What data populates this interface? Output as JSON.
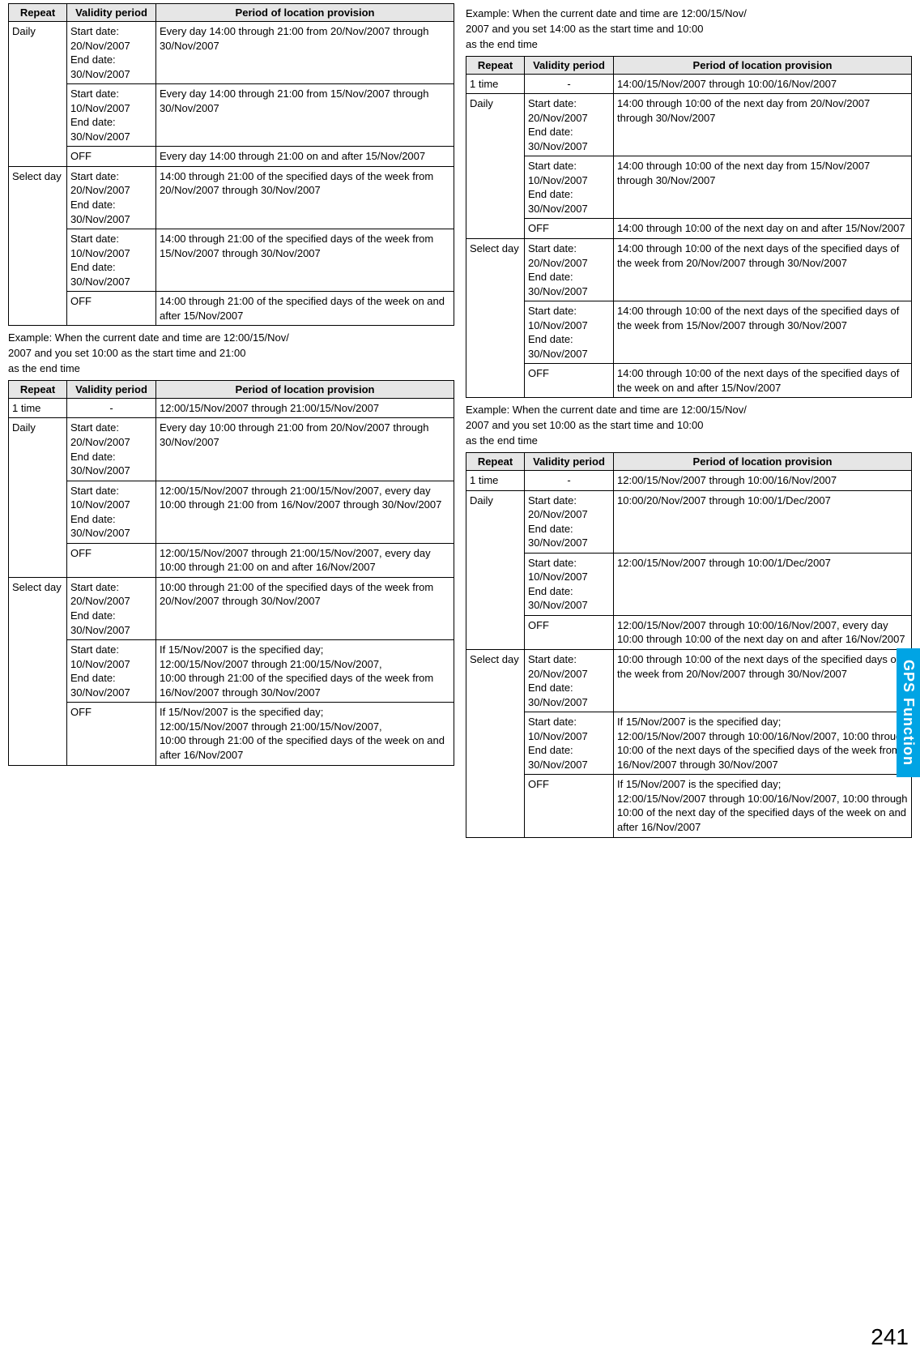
{
  "sideTab": "GPS Function",
  "pageNumber": "241",
  "headers": {
    "repeat": "Repeat",
    "validity": "Validity period",
    "period": "Period of location provision"
  },
  "examples": {
    "ex2": "Example: When the current date and time are 12:00/15/Nov/2007 and you set 10:00 as the start time and 21:00 as the end time",
    "ex3": "Example: When the current date and time are 12:00/15/Nov/2007 and you set 14:00 as the start time and 10:00 as the end time",
    "ex4": "Example: When the current date and time are 12:00/15/Nov/2007 and you set 10:00 as the start time and 10:00 as the end time"
  },
  "table1": [
    {
      "repeat": "Daily",
      "validity": "Start date: 20/Nov/2007\nEnd date: 30/Nov/2007",
      "period": "Every day 14:00 through 21:00 from 20/Nov/2007 through 30/Nov/2007",
      "rowspan": 3
    },
    {
      "validity": "Start date: 10/Nov/2007\nEnd date: 30/Nov/2007",
      "period": "Every day 14:00 through 21:00 from 15/Nov/2007 through 30/Nov/2007"
    },
    {
      "validity": "OFF",
      "period": "Every day 14:00 through 21:00 on and after 15/Nov/2007"
    },
    {
      "repeat": "Select day",
      "validity": "Start date: 20/Nov/2007\nEnd date: 30/Nov/2007",
      "period": "14:00 through 21:00 of the specified days of the week from 20/Nov/2007 through 30/Nov/2007",
      "rowspan": 3
    },
    {
      "validity": "Start date: 10/Nov/2007\nEnd date: 30/Nov/2007",
      "period": "14:00 through 21:00 of the specified days of the week from 15/Nov/2007 through 30/Nov/2007"
    },
    {
      "validity": "OFF",
      "period": "14:00 through 21:00 of the specified days of the week on and after 15/Nov/2007"
    }
  ],
  "table2": [
    {
      "repeat": "1 time",
      "validity": "-",
      "period": "12:00/15/Nov/2007 through 21:00/15/Nov/2007",
      "vcenter": true
    },
    {
      "repeat": "Daily",
      "validity": "Start date: 20/Nov/2007\nEnd date: 30/Nov/2007",
      "period": "Every day 10:00 through 21:00 from 20/Nov/2007 through 30/Nov/2007",
      "rowspan": 3
    },
    {
      "validity": "Start date: 10/Nov/2007\nEnd date: 30/Nov/2007",
      "period": "12:00/15/Nov/2007 through 21:00/15/Nov/2007, every day 10:00 through 21:00 from 16/Nov/2007 through 30/Nov/2007"
    },
    {
      "validity": "OFF",
      "period": "12:00/15/Nov/2007 through 21:00/15/Nov/2007, every day 10:00 through 21:00 on and after 16/Nov/2007"
    },
    {
      "repeat": "Select day",
      "validity": "Start date: 20/Nov/2007\nEnd date: 30/Nov/2007",
      "period": "10:00 through 21:00 of the specified days of the week from 20/Nov/2007 through 30/Nov/2007",
      "rowspan": 3
    },
    {
      "validity": "Start date: 10/Nov/2007\nEnd date: 30/Nov/2007",
      "period": "If 15/Nov/2007 is the specified day;\n12:00/15/Nov/2007 through 21:00/15/Nov/2007,\n10:00 through 21:00 of the specified days of the week from 16/Nov/2007 through 30/Nov/2007"
    },
    {
      "validity": "OFF",
      "period": "If 15/Nov/2007 is the specified day;\n12:00/15/Nov/2007 through 21:00/15/Nov/2007,\n10:00 through 21:00 of the specified days of the week on and after 16/Nov/2007"
    }
  ],
  "table3": [
    {
      "repeat": "1 time",
      "validity": "-",
      "period": "14:00/15/Nov/2007 through 10:00/16/Nov/2007",
      "vcenter": true
    },
    {
      "repeat": "Daily",
      "validity": "Start date: 20/Nov/2007\nEnd date: 30/Nov/2007",
      "period": "14:00 through 10:00 of the next day from 20/Nov/2007 through 30/Nov/2007",
      "rowspan": 3
    },
    {
      "validity": "Start date: 10/Nov/2007\nEnd date: 30/Nov/2007",
      "period": "14:00 through 10:00 of the next day from 15/Nov/2007 through 30/Nov/2007"
    },
    {
      "validity": "OFF",
      "period": "14:00 through 10:00 of the next day on and after 15/Nov/2007"
    },
    {
      "repeat": "Select day",
      "validity": "Start date: 20/Nov/2007\nEnd date: 30/Nov/2007",
      "period": "14:00 through 10:00 of the next days of the specified days of the week from 20/Nov/2007 through 30/Nov/2007",
      "rowspan": 3
    },
    {
      "validity": "Start date: 10/Nov/2007\nEnd date: 30/Nov/2007",
      "period": "14:00 through 10:00 of the next days of the specified days of the week from 15/Nov/2007 through 30/Nov/2007"
    },
    {
      "validity": "OFF",
      "period": "14:00 through 10:00 of the next days of the specified days of the week on and after 15/Nov/2007"
    }
  ],
  "table4": [
    {
      "repeat": "1 time",
      "validity": "-",
      "period": "12:00/15/Nov/2007 through 10:00/16/Nov/2007",
      "vcenter": true
    },
    {
      "repeat": "Daily",
      "validity": "Start date: 20/Nov/2007\nEnd date: 30/Nov/2007",
      "period": "10:00/20/Nov/2007 through 10:00/1/Dec/2007",
      "rowspan": 3
    },
    {
      "validity": "Start date: 10/Nov/2007\nEnd date: 30/Nov/2007",
      "period": "12:00/15/Nov/2007 through 10:00/1/Dec/2007"
    },
    {
      "validity": "OFF",
      "period": "12:00/15/Nov/2007 through 10:00/16/Nov/2007, every day 10:00 through 10:00 of the next day on and after 16/Nov/2007"
    },
    {
      "repeat": "Select day",
      "validity": "Start date: 20/Nov/2007\nEnd date: 30/Nov/2007",
      "period": "10:00 through 10:00 of the next days of the specified days of the week from 20/Nov/2007 through 30/Nov/2007",
      "rowspan": 3
    },
    {
      "validity": "Start date: 10/Nov/2007\nEnd date: 30/Nov/2007",
      "period": "If 15/Nov/2007 is the specified day;\n12:00/15/Nov/2007 through 10:00/16/Nov/2007, 10:00 through 10:00 of the next days of the specified days of the week from 16/Nov/2007 through 30/Nov/2007"
    },
    {
      "validity": "OFF",
      "period": "If 15/Nov/2007 is the specified day;\n12:00/15/Nov/2007 through 10:00/16/Nov/2007, 10:00 through 10:00 of the next day of the specified days of the week on and after 16/Nov/2007"
    }
  ]
}
